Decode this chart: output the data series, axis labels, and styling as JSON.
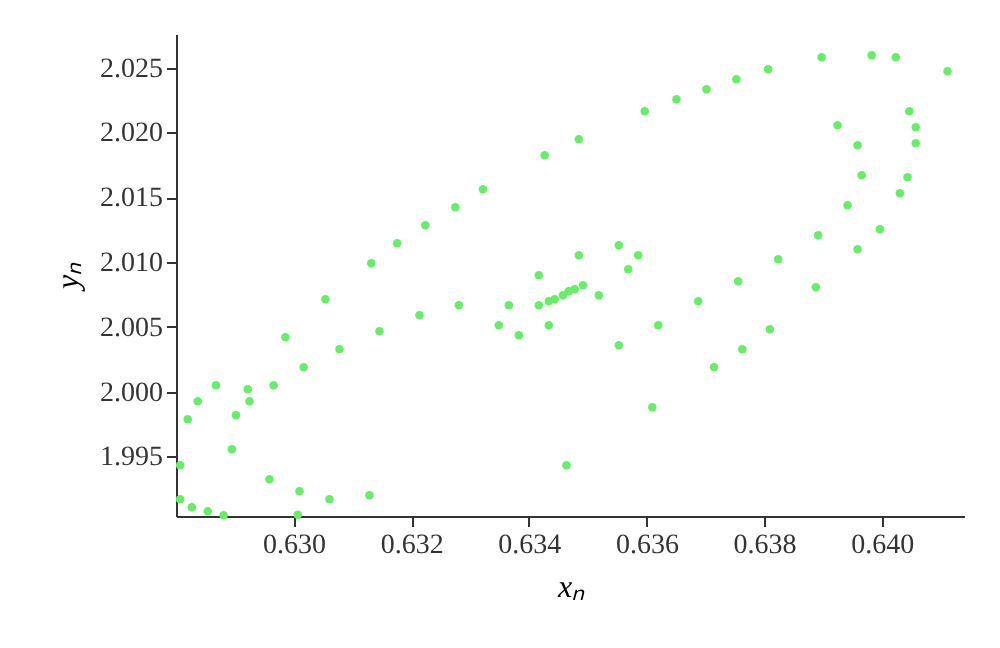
{
  "chart_data": {
    "type": "scatter",
    "xlabel": "xₙ",
    "ylabel": "yₙ",
    "xlim": [
      0.628,
      0.6414
    ],
    "ylim": [
      1.9904,
      2.0276
    ],
    "xticks": [
      {
        "value": 0.63,
        "label": "0.630"
      },
      {
        "value": 0.632,
        "label": "0.632"
      },
      {
        "value": 0.634,
        "label": "0.634"
      },
      {
        "value": 0.636,
        "label": "0.636"
      },
      {
        "value": 0.638,
        "label": "0.638"
      },
      {
        "value": 0.64,
        "label": "0.640"
      }
    ],
    "yticks": [
      {
        "value": 1.995,
        "label": "1.995"
      },
      {
        "value": 2.0,
        "label": "2.000"
      },
      {
        "value": 2.005,
        "label": "2.005"
      },
      {
        "value": 2.01,
        "label": "2.010"
      },
      {
        "value": 2.015,
        "label": "2.015"
      },
      {
        "value": 2.02,
        "label": "2.020"
      },
      {
        "value": 2.025,
        "label": "2.025"
      }
    ],
    "grid": false,
    "marker": "circle",
    "series": [
      {
        "color": "#66ee66",
        "x": [
          0.62807,
          0.62827,
          0.62854,
          0.62881,
          0.63007,
          0.63464,
          0.6361,
          0.63715,
          0.63763,
          0.6381,
          0.63888,
          0.63959,
          0.63997,
          0.64031,
          0.64044,
          0.64058,
          0.64058,
          0.64047,
          0.64024,
          0.63983,
          0.64112,
          0.63898,
          0.63807,
          0.63753,
          0.63702,
          0.63651,
          0.63597,
          0.63485,
          0.63427,
          0.63322,
          0.63275,
          0.63224,
          0.63176,
          0.63132,
          0.63054,
          0.62986,
          0.62922,
          0.62868,
          0.62837,
          0.6282,
          0.62807,
          0.62895,
          0.62902,
          0.62925,
          0.62966,
          0.63017,
          0.63078,
          0.63146,
          0.63214,
          0.63281,
          0.62959,
          0.6301,
          0.63061,
          0.63129,
          0.63925,
          0.63959,
          0.63966,
          0.63942,
          0.63892,
          0.63824,
          0.63756,
          0.63688,
          0.6362,
          0.63553,
          0.63349,
          0.63383,
          0.63434,
          0.63519,
          0.63569,
          0.63586,
          0.63553,
          0.63485,
          0.63417,
          0.63366,
          0.63417,
          0.63444,
          0.63468,
          0.63492,
          0.63458,
          0.63434,
          0.63478
        ],
        "values": [
          1.9917,
          1.99108,
          1.99077,
          1.99046,
          1.9905,
          1.99432,
          1.9988,
          2.00188,
          2.00327,
          2.00481,
          2.00806,
          2.01099,
          2.01253,
          2.01531,
          2.01654,
          2.01917,
          2.0204,
          2.02164,
          2.0258,
          2.02596,
          2.02472,
          2.0258,
          2.02488,
          2.0241,
          2.02333,
          2.02256,
          2.02164,
          2.01948,
          2.01824,
          2.01562,
          2.01423,
          2.01284,
          2.01145,
          2.00991,
          2.00713,
          2.0042,
          2.00018,
          2.00049,
          1.99926,
          1.99787,
          1.99432,
          1.99556,
          1.99818,
          1.99926,
          2.00049,
          2.00188,
          2.00327,
          2.00466,
          2.00589,
          2.00666,
          1.99324,
          1.99231,
          1.9917,
          1.99201,
          2.02055,
          2.01901,
          2.01669,
          2.01438,
          2.01207,
          2.01021,
          2.00852,
          2.00697,
          2.00512,
          2.00358,
          2.00512,
          2.00435,
          2.00512,
          2.00744,
          2.00944,
          2.01052,
          2.01129,
          2.01052,
          2.00898,
          2.00666,
          2.00666,
          2.00713,
          2.00774,
          2.00821,
          2.00744,
          2.00697,
          2.0079
        ]
      }
    ]
  }
}
